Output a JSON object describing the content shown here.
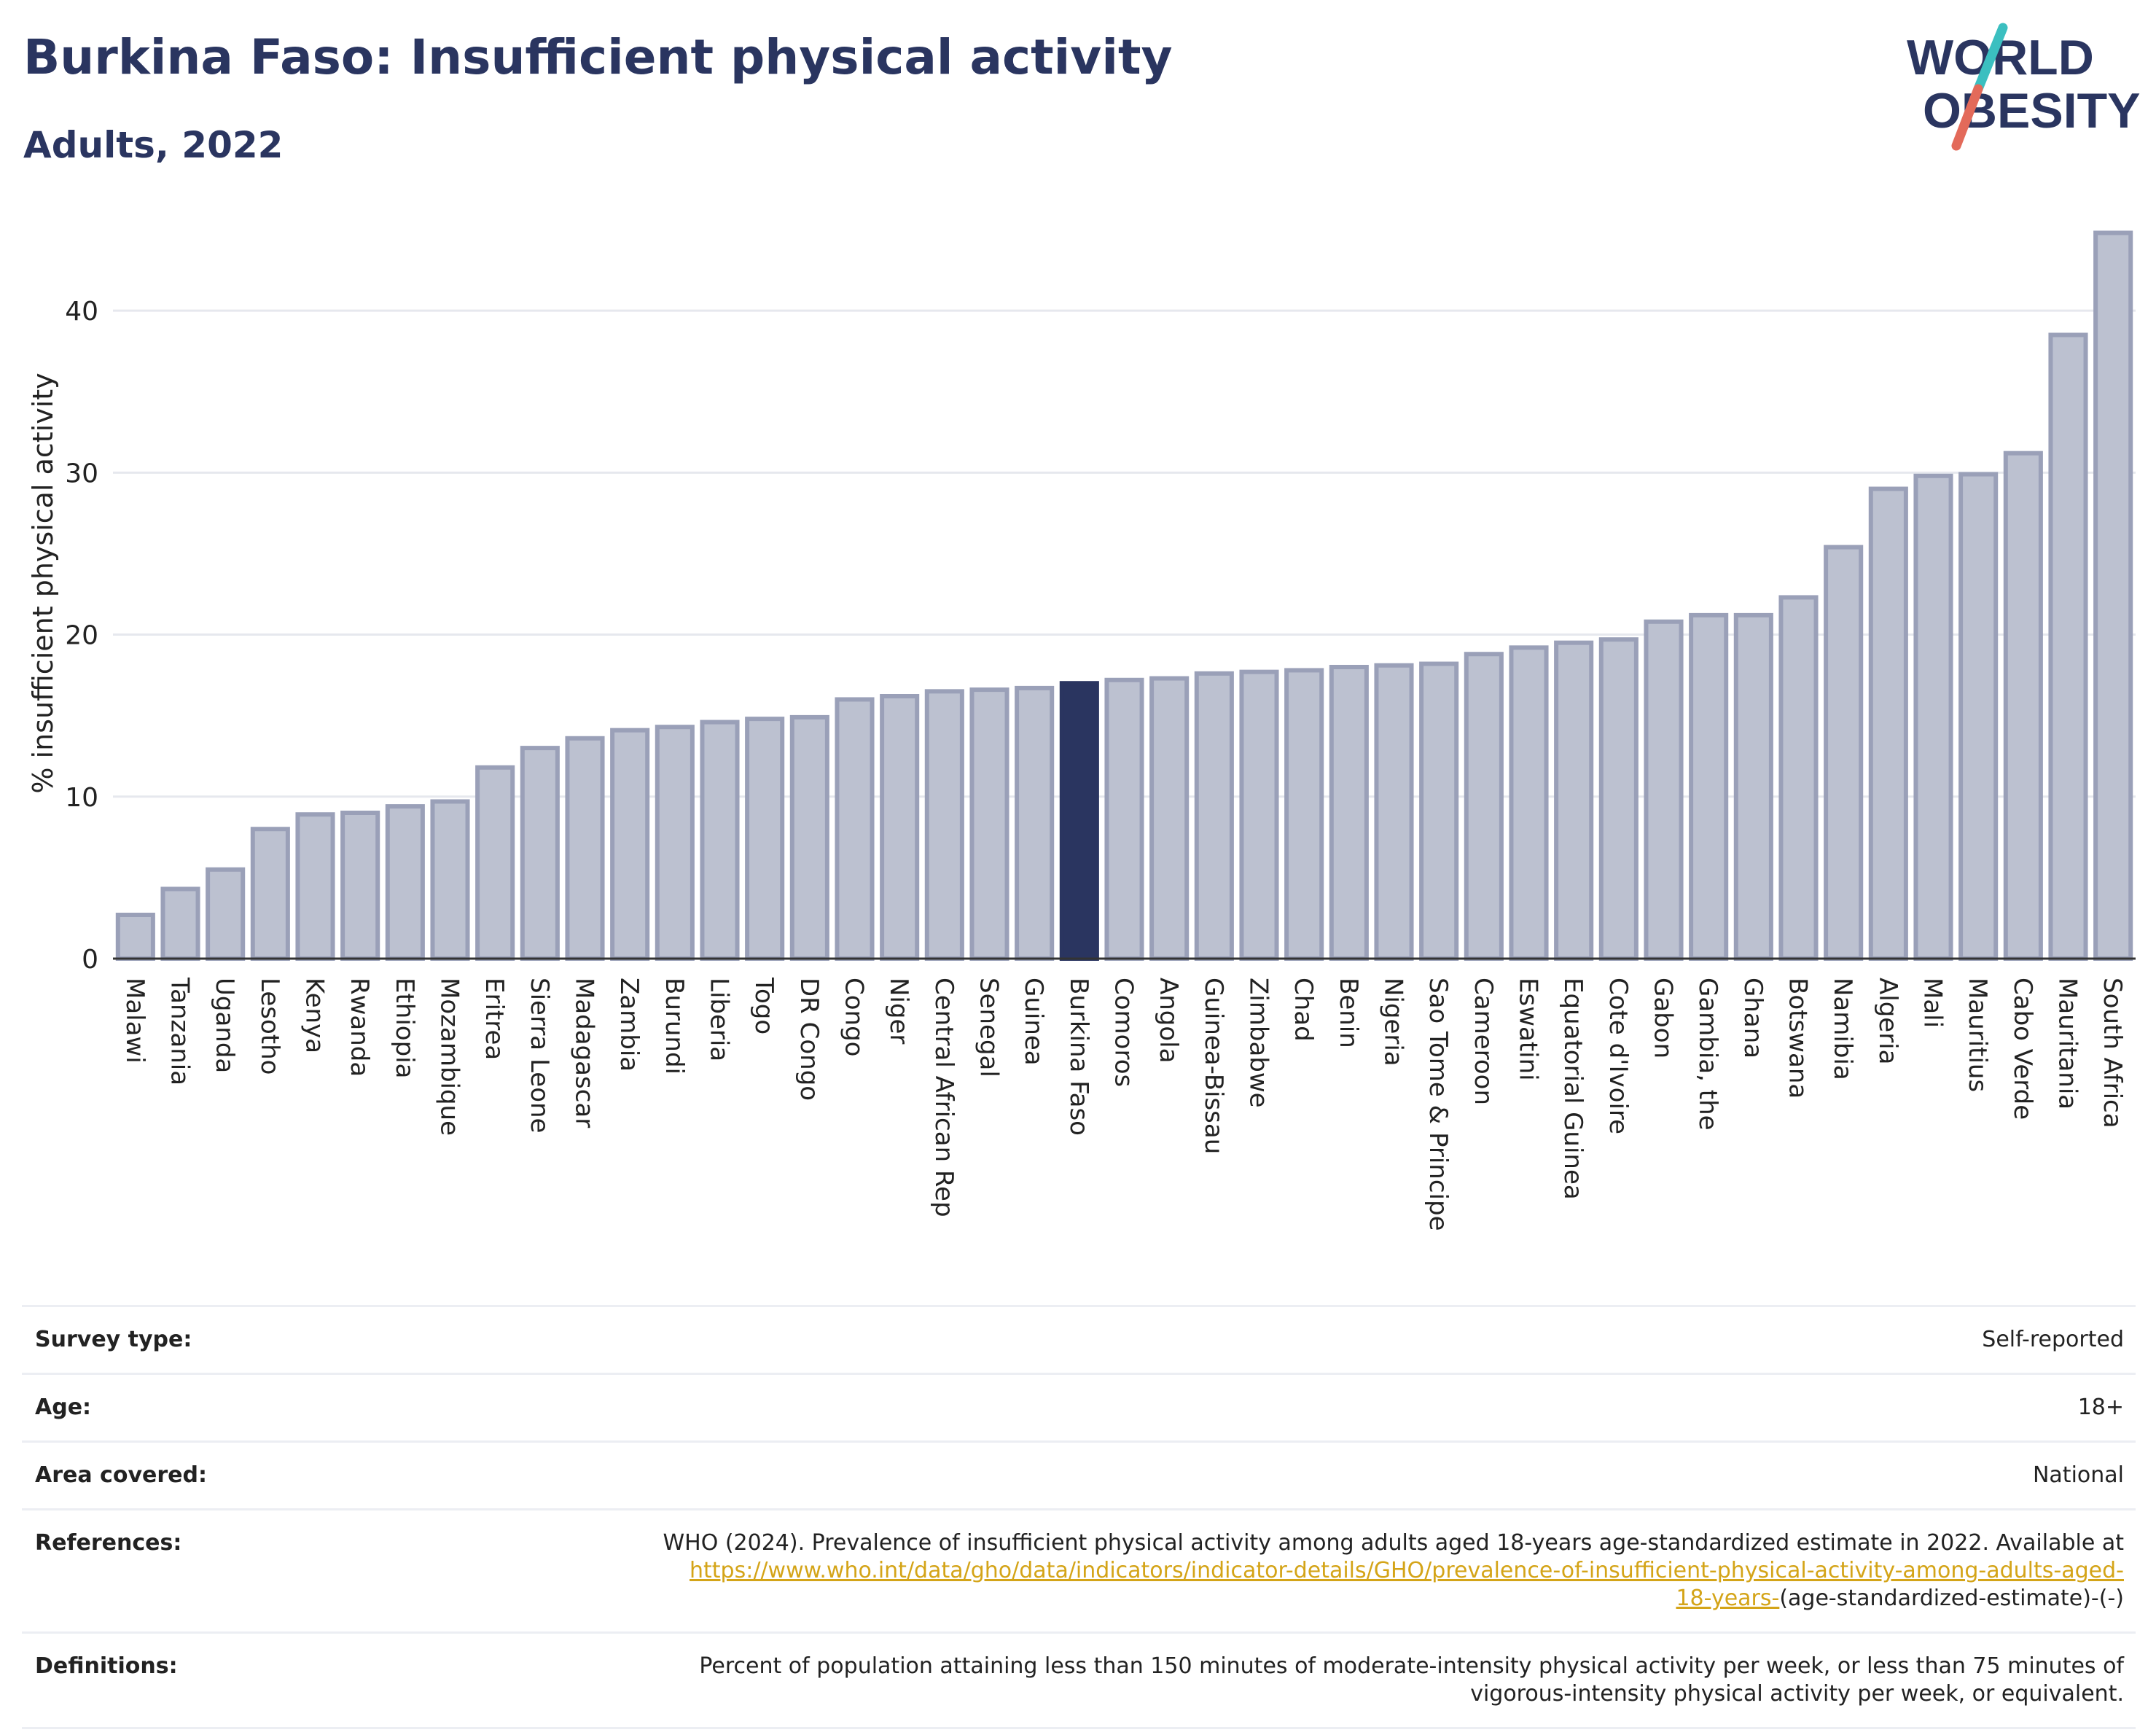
{
  "header": {
    "title": "Burkina Faso: Insufficient physical activity",
    "subtitle": "Adults, 2022"
  },
  "logo": {
    "line1": "WORLD",
    "line2": "OBESITY"
  },
  "colors": {
    "bar": "#bcc1d0",
    "bar_outline": "#9aa0b8",
    "highlight": "#2a3560",
    "title": "#2a3560",
    "link": "#d4a418"
  },
  "chart_data": {
    "type": "bar",
    "ylabel": "% insufficient physical activity",
    "ylim": [
      0,
      45
    ],
    "yticks": [
      0,
      10,
      20,
      30,
      40
    ],
    "grid": true,
    "highlight": "Burkina Faso",
    "categories": [
      "Malawi",
      "Tanzania",
      "Uganda",
      "Lesotho",
      "Kenya",
      "Rwanda",
      "Ethiopia",
      "Mozambique",
      "Eritrea",
      "Sierra Leone",
      "Madagascar",
      "Zambia",
      "Burundi",
      "Liberia",
      "Togo",
      "DR Congo",
      "Congo",
      "Niger",
      "Central African Rep",
      "Senegal",
      "Guinea",
      "Burkina Faso",
      "Comoros",
      "Angola",
      "Guinea-Bissau",
      "Zimbabwe",
      "Chad",
      "Benin",
      "Nigeria",
      "Sao Tome & Principe",
      "Cameroon",
      "Eswatini",
      "Equatorial Guinea",
      "Cote d'Ivoire",
      "Gabon",
      "Gambia, the",
      "Ghana",
      "Botswana",
      "Namibia",
      "Algeria",
      "Mali",
      "Mauritius",
      "Cabo Verde",
      "Mauritania",
      "South Africa"
    ],
    "values": [
      2.7,
      4.3,
      5.5,
      8.0,
      8.9,
      9.0,
      9.4,
      9.7,
      11.8,
      13.0,
      13.6,
      14.1,
      14.3,
      14.6,
      14.8,
      14.9,
      16.0,
      16.2,
      16.5,
      16.6,
      16.7,
      17.0,
      17.2,
      17.3,
      17.6,
      17.7,
      17.8,
      18.0,
      18.1,
      18.2,
      18.8,
      19.2,
      19.5,
      19.7,
      20.8,
      21.2,
      21.2,
      22.3,
      25.4,
      29.0,
      29.8,
      29.9,
      31.2,
      38.5,
      44.8
    ]
  },
  "info": {
    "survey_type": {
      "label": "Survey type:",
      "value": "Self-reported"
    },
    "age": {
      "label": "Age:",
      "value": "18+"
    },
    "area": {
      "label": "Area covered:",
      "value": "National"
    },
    "references": {
      "label": "References:",
      "text": "WHO (2024). Prevalence of insufficient physical activity among adults aged 18-years age-standardized estimate in 2022. Available at",
      "link_line1": "https://www.who.int/data/gho/data/indicators/indicator-details/GHO/prevalence-of-insufficient-physical-activity-among-adults-aged-",
      "link_line2": "18-years-",
      "suffix": "(age-standardized-estimate)-(-)"
    },
    "definitions": {
      "label": "Definitions:",
      "text": "Percent of population attaining less than 150 minutes of moderate-intensity physical activity per week, or less than 75 minutes of vigorous-intensity physical activity per week, or equivalent."
    }
  }
}
